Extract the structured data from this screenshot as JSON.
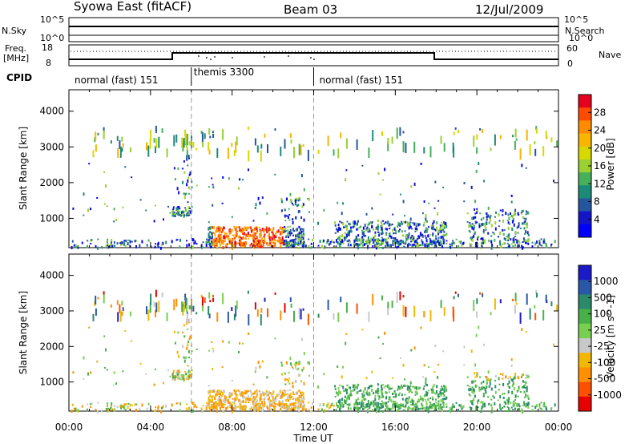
{
  "header": {
    "station": "Syowa East (fitACF)",
    "beam": "Beam 03",
    "date": "12/Jul/2009"
  },
  "strip_labels": {
    "nsky": "N.Sky",
    "nsearch": "N.Search",
    "freq_label": "Freq.",
    "freq_unit": "[MHz]",
    "nave": "Nave",
    "cpid": "CPID",
    "nsky_ticks": [
      "10^5",
      "10^0"
    ],
    "nsearch_ticks": [
      "10^5",
      "10^0"
    ],
    "freq_ticks": [
      "18",
      "8"
    ],
    "nave_ticks": [
      "60",
      "0"
    ]
  },
  "cpid_segments": [
    {
      "label": "normal (fast) 151",
      "start_hour": 0,
      "end_hour": 6
    },
    {
      "label": "themis 3300",
      "start_hour": 6,
      "end_hour": 12
    },
    {
      "label": "normal (fast) 151",
      "start_hour": 12,
      "end_hour": 24
    }
  ],
  "chart_data": [
    {
      "type": "heatmap",
      "title": "",
      "xlabel": "Time UT",
      "ylabel": "Slant Range [km]",
      "xlim": [
        0,
        24
      ],
      "ylim": [
        180,
        4600
      ],
      "x_tick_labels": [
        "00:00",
        "04:00",
        "08:00",
        "12:00",
        "16:00",
        "20:00",
        "00:00"
      ],
      "y_tick_labels": [
        "1000",
        "2000",
        "3000",
        "4000"
      ],
      "y_ticks": [
        1000,
        2000,
        3000,
        4000
      ],
      "colorbar": {
        "label": "Power [dB]",
        "ticks": [
          "28",
          "24",
          "20",
          "16",
          "12",
          "8",
          "4"
        ],
        "colors_top_to_bottom": [
          "#e5001e",
          "#ff4a00",
          "#ff8c00",
          "#f7b500",
          "#d8d800",
          "#9ad030",
          "#46b05a",
          "#1c8a78",
          "#23569e",
          "#1414c8",
          "#0000ff"
        ]
      },
      "notes": "Echoes concentrated near 180-800 km throughout the day; strongest (>24 dB) near 07:00-10:00 UT at ~250-700 km; scattered far-range echoes near 3000-3600 km."
    },
    {
      "type": "heatmap",
      "title": "",
      "xlabel": "Time UT",
      "ylabel": "Slant Range [km]",
      "xlim": [
        0,
        24
      ],
      "ylim": [
        180,
        4600
      ],
      "x_tick_labels": [
        "00:00",
        "04:00",
        "08:00",
        "12:00",
        "16:00",
        "20:00",
        "00:00"
      ],
      "y_tick_labels": [
        "1000",
        "2000",
        "3000",
        "4000"
      ],
      "y_ticks": [
        1000,
        2000,
        3000,
        4000
      ],
      "colorbar": {
        "label": "Velocity [m s^-1]",
        "ticks": [
          "1000",
          "500",
          "100",
          "25",
          "-25",
          "-100",
          "-500",
          "-1000"
        ],
        "colors_top_to_bottom": [
          "#1a1ac8",
          "#2a58a8",
          "#2a8a6a",
          "#48b048",
          "#78d050",
          "#c8c8c8",
          "#f2b800",
          "#ff9000",
          "#ff5000",
          "#e80000"
        ]
      },
      "notes": "Mostly small negative (orange) velocities 07:00-11:00 UT at ~300-700 km; positive (green) velocities 13:00-22:00 UT at ~300-1000 km."
    }
  ]
}
